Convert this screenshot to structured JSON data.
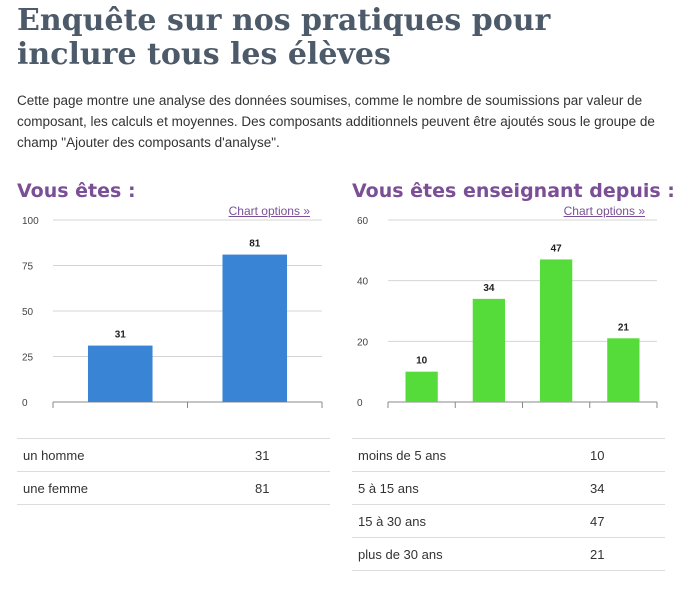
{
  "page": {
    "title": "Enquête sur nos pratiques pour inclure tous les élèves",
    "intro": "Cette page montre une analyse des données soumises, comme le nombre de soumissions par valeur de composant, les calculs et moyennes. Des composants additionnels peuvent être ajoutés sous le groupe de champ \"Ajouter des composants d'analyse\"."
  },
  "panels": [
    {
      "title": "Vous êtes :",
      "chart_options_label": "Chart options »"
    },
    {
      "title": "Vous êtes enseignant depuis :",
      "chart_options_label": "Chart options »"
    }
  ],
  "chart_data": [
    {
      "type": "bar",
      "title": "Vous êtes :",
      "categories": [
        "un homme",
        "une femme"
      ],
      "values": [
        31,
        81
      ],
      "ylim": [
        0,
        100
      ],
      "yticks": [
        0,
        25,
        50,
        75,
        100
      ],
      "color": "#3a84d6",
      "grid": true
    },
    {
      "type": "bar",
      "title": "Vous êtes enseignant depuis :",
      "categories": [
        "moins de 5 ans",
        "5 à 15 ans",
        "15 à 30 ans",
        "plus de 30 ans"
      ],
      "values": [
        10,
        34,
        47,
        21
      ],
      "ylim": [
        0,
        60
      ],
      "yticks": [
        0,
        20,
        40,
        60
      ],
      "color": "#56dc3a",
      "grid": true
    }
  ]
}
